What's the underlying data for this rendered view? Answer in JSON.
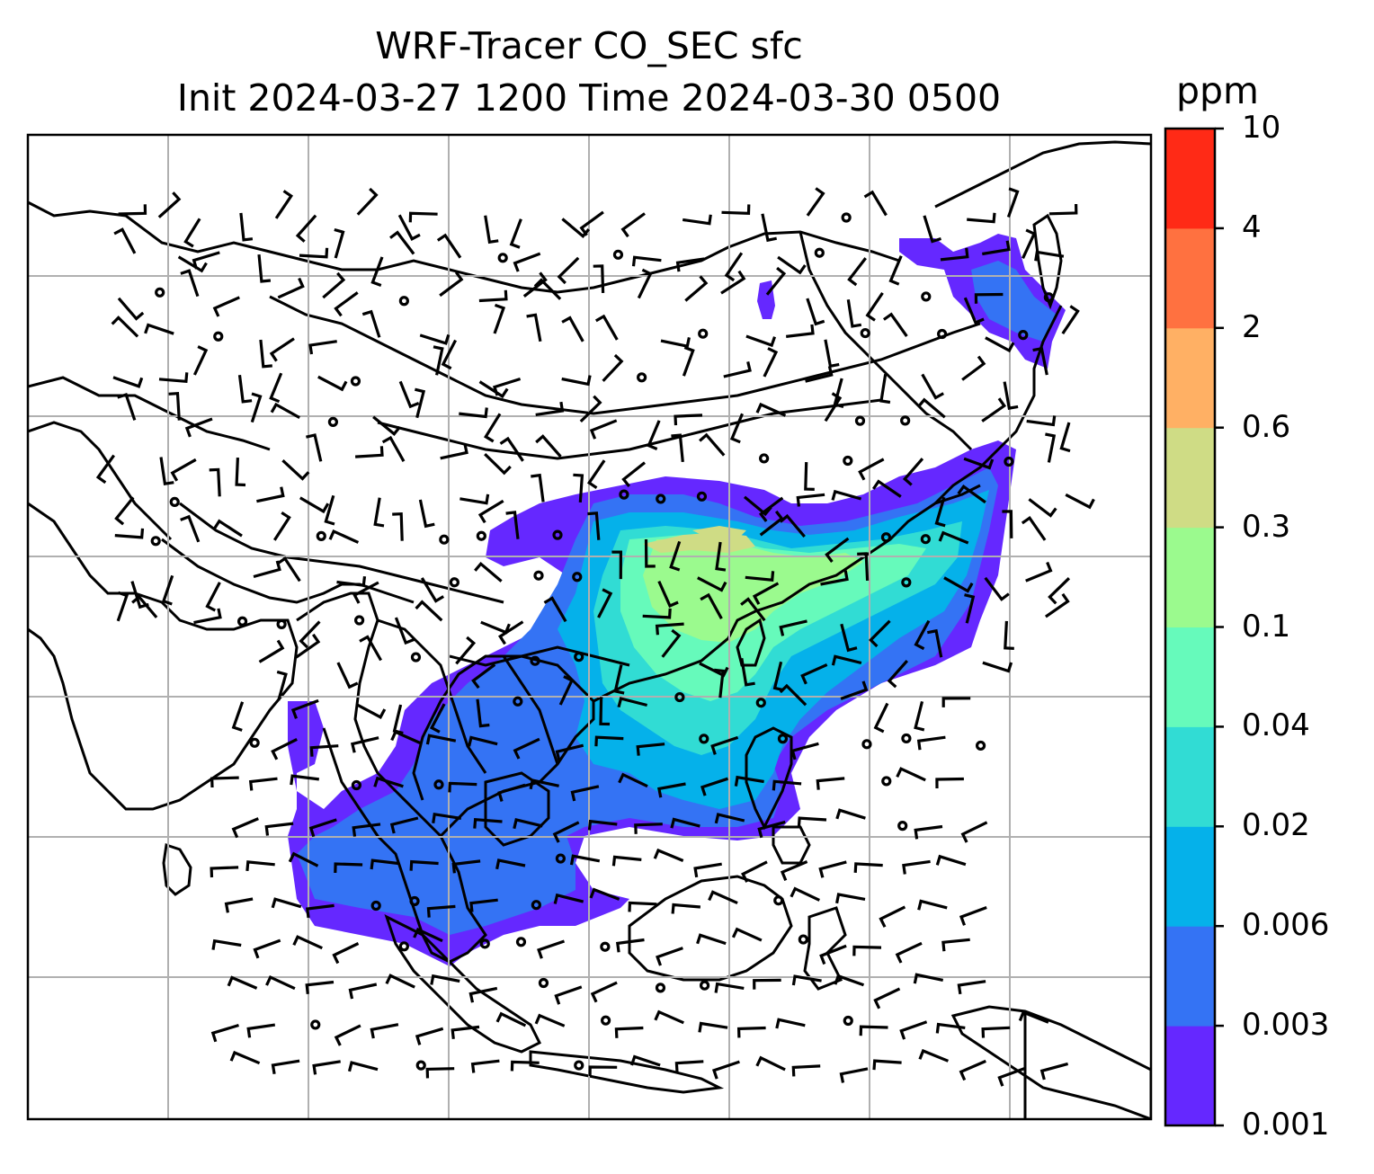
{
  "title": {
    "line1": "WRF-Tracer CO_SEC sfc",
    "line2": "Init 2024-03-27 1200 Time 2024-03-30 0500"
  },
  "colorbar": {
    "unit": "ppm",
    "levels": [
      "0.001",
      "0.003",
      "0.006",
      "0.02",
      "0.04",
      "0.1",
      "0.3",
      "0.6",
      "2",
      "4",
      "10"
    ],
    "colors": [
      "#6528ff",
      "#3473f4",
      "#05b1ea",
      "#31dcd4",
      "#66fabb",
      "#9bfa8e",
      "#cfdc85",
      "#ffb064",
      "#ff7140",
      "#ff2a16"
    ]
  },
  "map": {
    "field": "CO_SEC",
    "level": "sfc",
    "grid_lines": true,
    "overlay": "wind barbs and calm-wind circles",
    "coastlines": true
  }
}
